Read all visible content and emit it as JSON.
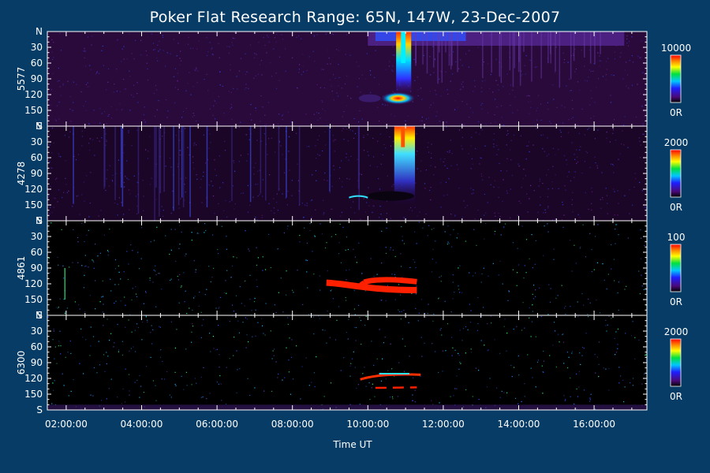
{
  "chart_data": {
    "type": "heatmap",
    "title": "Poker Flat Research Range: 65N, 147W, 23-Dec-2007",
    "xlabel": "Time UT",
    "x_ticks": [
      "02:00:00",
      "04:00:00",
      "06:00:00",
      "08:00:00",
      "10:00:00",
      "12:00:00",
      "14:00:00",
      "16:00:00"
    ],
    "xlim_hours": [
      1.5,
      17.4
    ],
    "y_ticks": [
      "N",
      "30",
      "60",
      "90",
      "120",
      "150",
      "S"
    ],
    "ylim_deg": [
      0,
      180
    ],
    "panels": [
      {
        "ylabel": "5577",
        "colorbar_max": "10000",
        "colorbar_min": "0R"
      },
      {
        "ylabel": "4278",
        "colorbar_max": "2000",
        "colorbar_min": "0R"
      },
      {
        "ylabel": "4861",
        "colorbar_max": "100",
        "colorbar_min": "0R"
      },
      {
        "ylabel": "6300",
        "colorbar_max": "2000",
        "colorbar_min": "0R"
      }
    ],
    "features": [
      {
        "panel": "5577",
        "t_start": 9.5,
        "t_end": 11.5,
        "angle_deg": [
          0,
          130
        ],
        "intensity": "high"
      },
      {
        "panel": "4278",
        "t_start": 10.6,
        "t_end": 11.3,
        "angle_deg": [
          0,
          150
        ],
        "intensity": "high"
      },
      {
        "panel": "4861",
        "t_start": 9.0,
        "t_end": 11.5,
        "angle_deg": [
          110,
          140
        ],
        "intensity": "saturated"
      },
      {
        "panel": "6300",
        "t_start": 9.8,
        "t_end": 11.4,
        "angle_deg": [
          110,
          130
        ],
        "intensity": "high"
      }
    ]
  }
}
